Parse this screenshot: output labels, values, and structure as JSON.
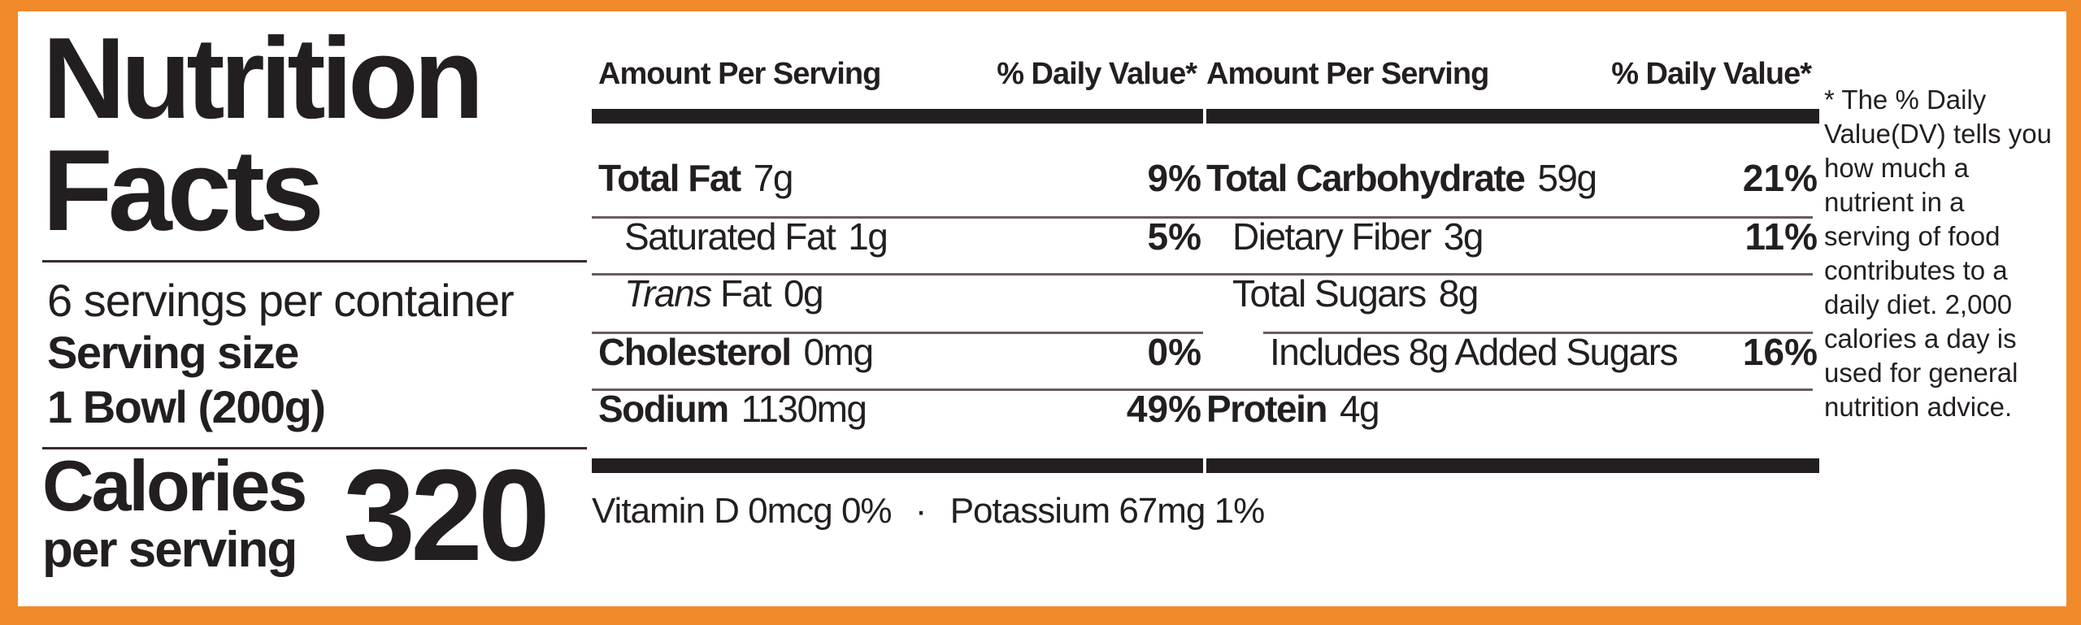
{
  "header": {
    "title_line1": "Nutrition",
    "title_line2": "Facts"
  },
  "servings": {
    "per_container": "6 servings per container",
    "serving_size_label": "Serving size",
    "serving_size_value": "1 Bowl (200g)"
  },
  "calories": {
    "label": "Calories",
    "sublabel": "per serving",
    "value": "320"
  },
  "table_headers": {
    "amount": "Amount Per Serving",
    "daily_value": "% Daily Value*"
  },
  "left_column": [
    {
      "name": "Total Fat",
      "amount": "7g",
      "dv": "9%",
      "bold": true,
      "indent": 0
    },
    {
      "name": "Saturated Fat",
      "amount": "1g",
      "dv": "5%",
      "bold": false,
      "indent": 1
    },
    {
      "name_italic": "Trans",
      "name": "Fat",
      "amount": "0g",
      "dv": "",
      "bold": false,
      "indent": 1
    },
    {
      "name": "Cholesterol",
      "amount": "0mg",
      "dv": "0%",
      "bold": true,
      "indent": 0
    },
    {
      "name": "Sodium",
      "amount": "1130mg",
      "dv": "49%",
      "bold": true,
      "indent": 0
    }
  ],
  "right_column": [
    {
      "name": "Total Carbohydrate",
      "amount": "59g",
      "dv": "21%",
      "bold": true,
      "indent": 0
    },
    {
      "name": "Dietary Fiber",
      "amount": "3g",
      "dv": "11%",
      "bold": false,
      "indent": 1
    },
    {
      "name": "Total Sugars",
      "amount": "8g",
      "dv": "",
      "bold": false,
      "indent": 1
    },
    {
      "name": "Includes 8g Added Sugars",
      "amount": "",
      "dv": "16%",
      "bold": false,
      "indent": 2
    },
    {
      "name": "Protein",
      "amount": "4g",
      "dv": "",
      "bold": true,
      "indent": 0
    }
  ],
  "vitamins": {
    "vitamin_d": "Vitamin D 0mcg 0%",
    "separator": "·",
    "potassium": "Potassium 67mg 1%"
  },
  "footnote": "* The % Daily Value(DV) tells you how much a nutrient in a serving of food contributes to a daily diet. 2,000 calories a day is used for general nutrition advice.",
  "colors": {
    "background": "#f08a2a",
    "panel": "#ffffff",
    "text": "#231f20"
  }
}
